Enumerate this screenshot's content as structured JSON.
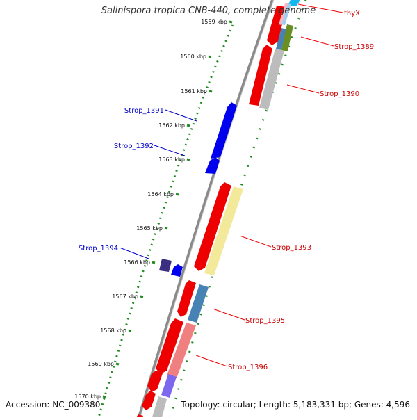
{
  "title": "Salinispora tropica CNB-440, complete genome",
  "footer": {
    "accession": "Accession: NC_009380",
    "info": "Topology: circular; Length: 5,183,331 bp; Genes: 4,596"
  },
  "colors": {
    "forward_label": "#0000cc",
    "reverse_label": "#cc0000",
    "tick": "#1f8a1f",
    "backbone": "#808080"
  },
  "ticks": [
    "1559 kbp",
    "1560 kbp",
    "1561 kbp",
    "1562 kbp",
    "1563 kbp",
    "1564 kbp",
    "1565 kbp",
    "1566 kbp",
    "1567 kbp",
    "1568 kbp",
    "1569 kbp",
    "1570 kbp"
  ],
  "gene_labels": [
    {
      "name": "thyX",
      "strand": "reverse"
    },
    {
      "name": "Strop_1389",
      "strand": "reverse"
    },
    {
      "name": "Strop_1390",
      "strand": "reverse"
    },
    {
      "name": "Strop_1391",
      "strand": "forward"
    },
    {
      "name": "Strop_1392",
      "strand": "forward"
    },
    {
      "name": "Strop_1393",
      "strand": "reverse"
    },
    {
      "name": "Strop_1394",
      "strand": "forward"
    },
    {
      "name": "Strop_1395",
      "strand": "reverse"
    },
    {
      "name": "Strop_1396",
      "strand": "reverse"
    }
  ]
}
